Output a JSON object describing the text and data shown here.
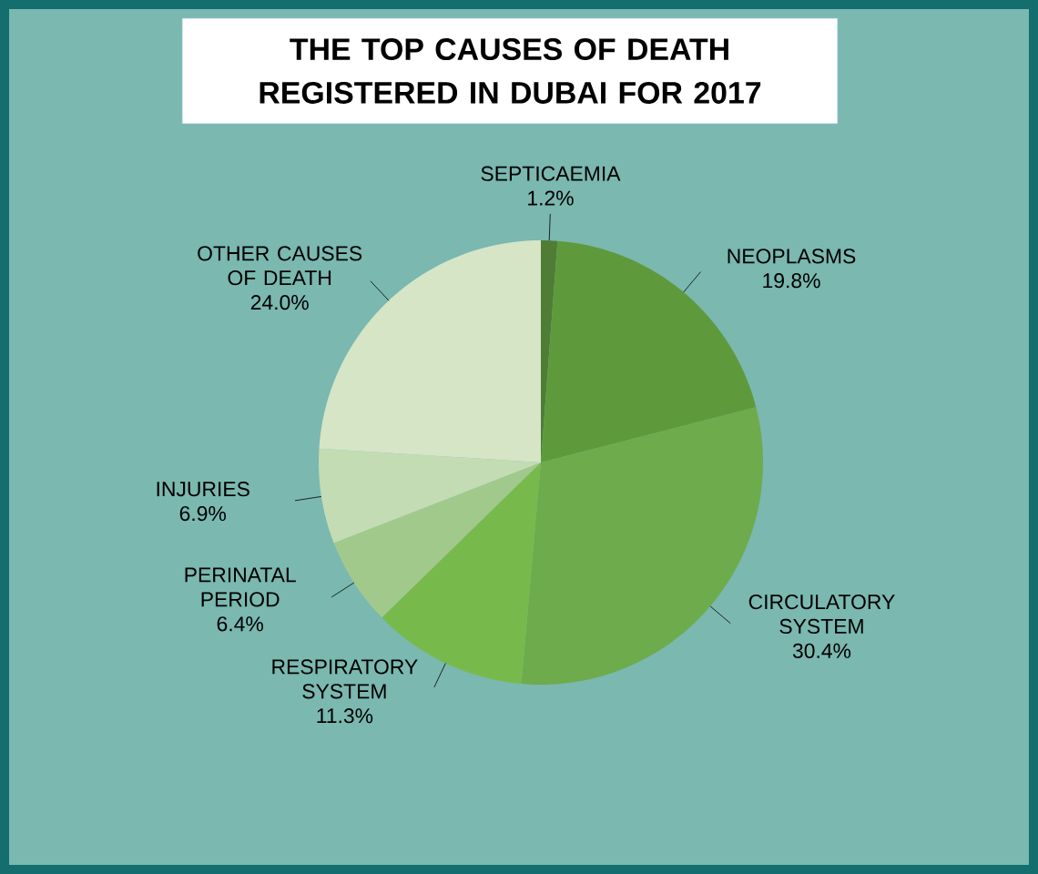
{
  "chart_data": {
    "type": "pie",
    "title": "THE TOP CAUSES OF DEATH REGISTERED IN DUBAI FOR 2017",
    "categories": [
      "SEPTICAEMIA",
      "NEOPLASMS",
      "CIRCULATORY SYSTEM",
      "RESPIRATORY SYSTEM",
      "PERINATAL PERIOD",
      "INJURIES",
      "OTHER CAUSES OF DEATH"
    ],
    "values": [
      1.2,
      19.8,
      30.4,
      11.3,
      6.4,
      6.9,
      24.0
    ],
    "value_labels": [
      "1.2%",
      "19.8%",
      "30.4%",
      "11.3%",
      "6.4%",
      "6.9%",
      "24.0%"
    ],
    "colors": [
      "#4f7d36",
      "#5e9a3c",
      "#6eab4c",
      "#78b94c",
      "#a2c98c",
      "#c3dcb3",
      "#d5e5c6"
    ]
  }
}
